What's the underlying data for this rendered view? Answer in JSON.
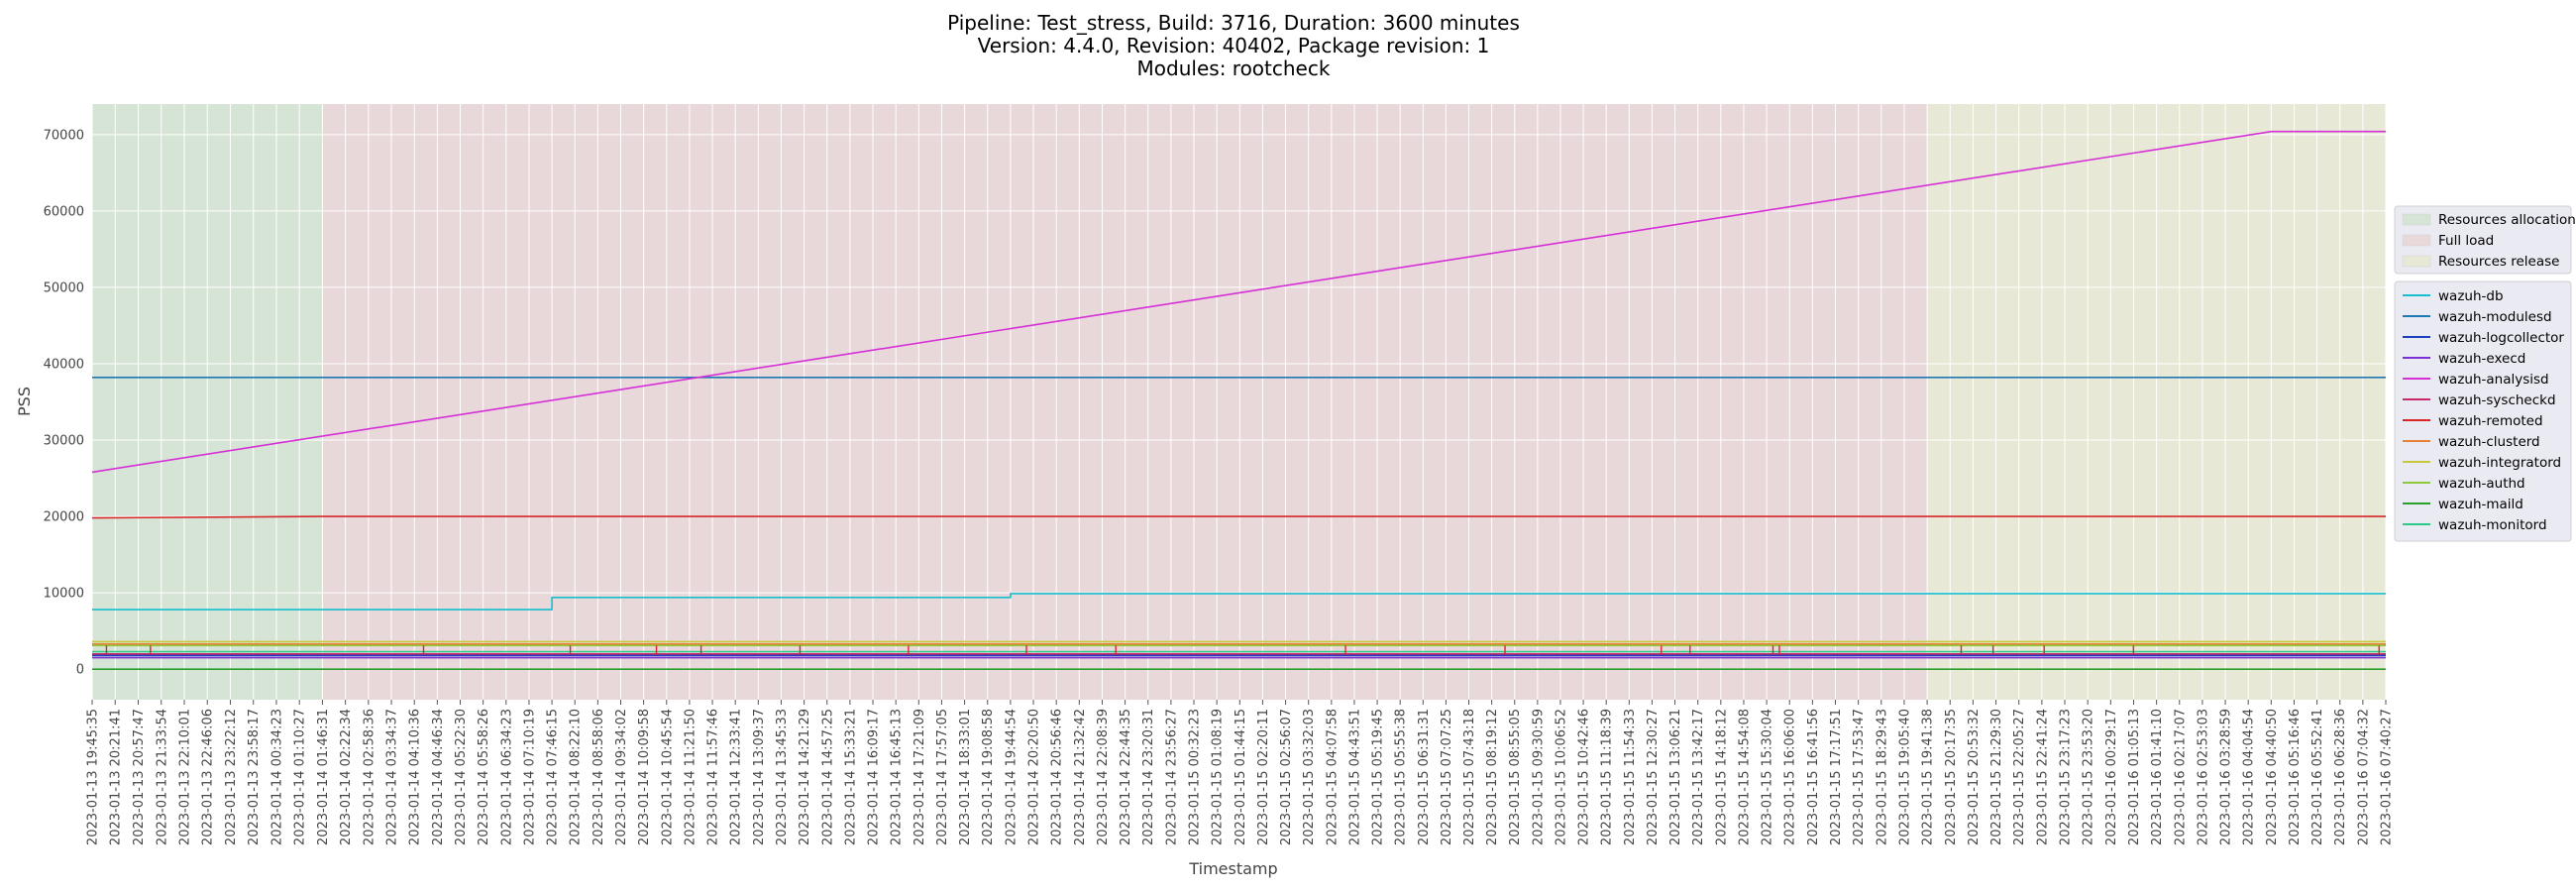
{
  "chart_data": {
    "type": "line",
    "title_lines": [
      "Pipeline: Test_stress, Build: 3716, Duration: 3600 minutes",
      "Version: 4.4.0, Revision: 40402, Package revision: 1",
      "Modules: rootcheck"
    ],
    "xlabel": "Timestamp",
    "ylabel": "PSS",
    "ylim": [
      -4000,
      74000
    ],
    "yticks": [
      0,
      10000,
      20000,
      30000,
      40000,
      50000,
      60000,
      70000
    ],
    "grid": true,
    "background": "#eaeaf2",
    "x_ticks": [
      "2023-01-13 19:45:35",
      "2023-01-13 20:21:41",
      "2023-01-13 20:57:47",
      "2023-01-13 21:33:54",
      "2023-01-13 22:10:01",
      "2023-01-13 22:46:06",
      "2023-01-13 23:22:12",
      "2023-01-13 23:58:17",
      "2023-01-14 00:34:23",
      "2023-01-14 01:10:27",
      "2023-01-14 01:46:31",
      "2023-01-14 02:22:34",
      "2023-01-14 02:58:36",
      "2023-01-14 03:34:37",
      "2023-01-14 04:10:36",
      "2023-01-14 04:46:34",
      "2023-01-14 05:22:30",
      "2023-01-14 05:58:26",
      "2023-01-14 06:34:23",
      "2023-01-14 07:10:19",
      "2023-01-14 07:46:15",
      "2023-01-14 08:22:10",
      "2023-01-14 08:58:06",
      "2023-01-14 09:34:02",
      "2023-01-14 10:09:58",
      "2023-01-14 10:45:54",
      "2023-01-14 11:21:50",
      "2023-01-14 11:57:46",
      "2023-01-14 12:33:41",
      "2023-01-14 13:09:37",
      "2023-01-14 13:45:33",
      "2023-01-14 14:21:29",
      "2023-01-14 14:57:25",
      "2023-01-14 15:33:21",
      "2023-01-14 16:09:17",
      "2023-01-14 16:45:13",
      "2023-01-14 17:21:09",
      "2023-01-14 17:57:05",
      "2023-01-14 18:33:01",
      "2023-01-14 19:08:58",
      "2023-01-14 19:44:54",
      "2023-01-14 20:20:50",
      "2023-01-14 20:56:46",
      "2023-01-14 21:32:42",
      "2023-01-14 22:08:39",
      "2023-01-14 22:44:35",
      "2023-01-14 23:20:31",
      "2023-01-14 23:56:27",
      "2023-01-15 00:32:23",
      "2023-01-15 01:08:19",
      "2023-01-15 01:44:15",
      "2023-01-15 02:20:11",
      "2023-01-15 02:56:07",
      "2023-01-15 03:32:03",
      "2023-01-15 04:07:58",
      "2023-01-15 04:43:51",
      "2023-01-15 05:19:45",
      "2023-01-15 05:55:38",
      "2023-01-15 06:31:31",
      "2023-01-15 07:07:25",
      "2023-01-15 07:43:18",
      "2023-01-15 08:19:12",
      "2023-01-15 08:55:05",
      "2023-01-15 09:30:59",
      "2023-01-15 10:06:52",
      "2023-01-15 10:42:46",
      "2023-01-15 11:18:39",
      "2023-01-15 11:54:33",
      "2023-01-15 12:30:27",
      "2023-01-15 13:06:21",
      "2023-01-15 13:42:17",
      "2023-01-15 14:18:12",
      "2023-01-15 14:54:08",
      "2023-01-15 15:30:04",
      "2023-01-15 16:06:00",
      "2023-01-15 16:41:56",
      "2023-01-15 17:17:51",
      "2023-01-15 17:53:47",
      "2023-01-15 18:29:43",
      "2023-01-15 19:05:40",
      "2023-01-15 19:41:38",
      "2023-01-15 20:17:35",
      "2023-01-15 20:53:32",
      "2023-01-15 21:29:30",
      "2023-01-15 22:05:27",
      "2023-01-15 22:41:24",
      "2023-01-15 23:17:23",
      "2023-01-15 23:53:20",
      "2023-01-16 00:29:17",
      "2023-01-16 01:05:13",
      "2023-01-16 01:41:10",
      "2023-01-16 02:17:07",
      "2023-01-16 02:53:03",
      "2023-01-16 03:28:59",
      "2023-01-16 04:04:54",
      "2023-01-16 04:40:50",
      "2023-01-16 05:16:46",
      "2023-01-16 05:52:41",
      "2023-01-16 06:28:36",
      "2023-01-16 07:04:32",
      "2023-01-16 07:40:27"
    ],
    "x_range": [
      "2023-01-13 19:45:35",
      "2023-01-16 07:40:27"
    ],
    "phases": [
      {
        "name": "Resources allocation",
        "start": "2023-01-13 19:45:35",
        "end": "2023-01-14 01:46:31",
        "color": "#d6e4d6"
      },
      {
        "name": "Full load",
        "start": "2023-01-14 01:46:31",
        "end": "2023-01-15 19:41:38",
        "color": "#e8d8da"
      },
      {
        "name": "Resources release",
        "start": "2023-01-15 19:41:38",
        "end": "2023-01-16 07:40:27",
        "color": "#e8e8d6"
      }
    ],
    "series": [
      {
        "name": "wazuh-db",
        "color": "#17becf",
        "points": [
          {
            "x": "2023-01-13 19:45:35",
            "y": 7800
          },
          {
            "x": "2023-01-14 07:46:15",
            "y": 7800
          },
          {
            "x": "2023-01-14 07:46:15",
            "y": 9400
          },
          {
            "x": "2023-01-14 19:44:54",
            "y": 9400
          },
          {
            "x": "2023-01-14 19:44:54",
            "y": 9900
          },
          {
            "x": "2023-01-16 07:40:27",
            "y": 9900
          }
        ]
      },
      {
        "name": "wazuh-modulesd",
        "color": "#1f77b4",
        "points": [
          {
            "x": "2023-01-13 19:45:35",
            "y": 38200
          },
          {
            "x": "2023-01-16 07:40:27",
            "y": 38200
          }
        ]
      },
      {
        "name": "wazuh-logcollector",
        "color": "#1a3fbf",
        "points": [
          {
            "x": "2023-01-13 19:45:35",
            "y": 1800
          },
          {
            "x": "2023-01-16 07:40:27",
            "y": 1800
          }
        ]
      },
      {
        "name": "wazuh-execd",
        "color": "#7b2fd6",
        "points": [
          {
            "x": "2023-01-13 19:45:35",
            "y": 1500
          },
          {
            "x": "2023-01-16 07:40:27",
            "y": 1500
          }
        ]
      },
      {
        "name": "wazuh-analysisd",
        "color": "#d62fd6",
        "points": [
          {
            "x": "2023-01-13 19:45:35",
            "y": 25800
          },
          {
            "x": "2023-01-16 04:40:50",
            "y": 70400
          },
          {
            "x": "2023-01-16 07:40:27",
            "y": 70400
          }
        ]
      },
      {
        "name": "wazuh-syscheckd",
        "color": "#c8286e",
        "points": [
          {
            "x": "2023-01-13 19:45:35",
            "y": 2000
          },
          {
            "x": "2023-01-16 07:40:27",
            "y": 2000
          }
        ]
      },
      {
        "name": "wazuh-remoted",
        "color": "#d62728",
        "points": [
          {
            "x": "2023-01-13 19:45:35",
            "y": 19800
          },
          {
            "x": "2023-01-14 01:46:31",
            "y": 20000
          },
          {
            "x": "2023-01-16 07:40:27",
            "y": 20000
          }
        ]
      },
      {
        "name": "wazuh-clusterd",
        "color": "#e8813a",
        "points": [
          {
            "x": "2023-01-13 19:45:35",
            "y": 3300
          },
          {
            "x": "2023-01-16 07:40:27",
            "y": 3300
          }
        ]
      },
      {
        "name": "wazuh-integratord",
        "color": "#c8c83a",
        "points": [
          {
            "x": "2023-01-13 19:45:35",
            "y": 3600
          },
          {
            "x": "2023-01-16 07:40:27",
            "y": 3600
          }
        ]
      },
      {
        "name": "wazuh-authd",
        "color": "#8fc83a",
        "points": [
          {
            "x": "2023-01-13 19:45:35",
            "y": 3100
          },
          {
            "x": "2023-01-16 07:40:27",
            "y": 3100
          }
        ]
      },
      {
        "name": "wazuh-maild",
        "color": "#2ca02c",
        "points": [
          {
            "x": "2023-01-13 19:45:35",
            "y": 0
          },
          {
            "x": "2023-01-16 07:40:27",
            "y": 0
          }
        ]
      },
      {
        "name": "wazuh-monitord",
        "color": "#2cc88a",
        "points": [
          {
            "x": "2023-01-13 19:45:35",
            "y": 2300
          },
          {
            "x": "2023-01-16 07:40:27",
            "y": 2300
          }
        ]
      }
    ],
    "spike_series": "wazuh-remoted",
    "spikes": {
      "base": 1900,
      "top": 3100,
      "times": [
        "2023-01-13 20:08:00",
        "2023-01-13 21:17:00",
        "2023-01-14 04:25:00",
        "2023-01-14 08:15:00",
        "2023-01-14 10:30:00",
        "2023-01-14 11:40:00",
        "2023-01-14 14:15:00",
        "2023-01-14 17:05:00",
        "2023-01-14 20:10:00",
        "2023-01-14 22:30:00",
        "2023-01-15 04:30:00",
        "2023-01-15 08:40:00",
        "2023-01-15 12:45:00",
        "2023-01-15 13:30:00",
        "2023-01-15 15:40:00",
        "2023-01-15 15:50:00",
        "2023-01-15 20:35:00",
        "2023-01-15 21:25:00",
        "2023-01-15 22:45:00",
        "2023-01-16 01:05:00",
        "2023-01-16 07:30:00"
      ]
    },
    "phase_legend_position": "right",
    "series_legend_position": "right"
  }
}
